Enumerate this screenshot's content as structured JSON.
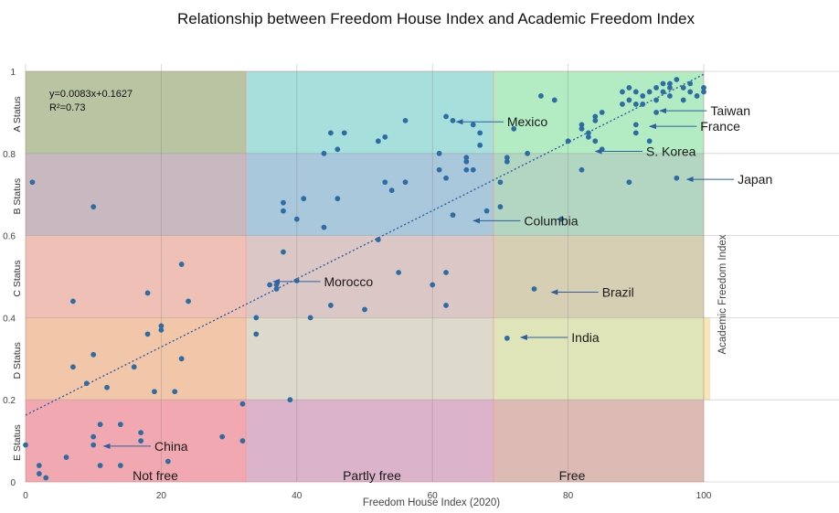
{
  "chart_data": {
    "type": "scatter",
    "title": "Relationship between Freedom House Index and Academic Freedom Index",
    "xlabel": "Freedom House Index (2020)",
    "ylabel": "Academic Freedom Index",
    "xlim": [
      0,
      100
    ],
    "ylim": [
      0,
      1
    ],
    "xticks": [
      "0",
      "20",
      "40",
      "60",
      "80",
      "100"
    ],
    "yticks": [
      "0",
      "0.2",
      "0.4",
      "0.6",
      "0.8",
      "1"
    ],
    "grid": true,
    "trendline": {
      "equation": "y=0.0083x+0.1627",
      "r2": "R²=0.73",
      "slope": 0.0083,
      "intercept": 0.1627,
      "color": "#2e5f9e"
    },
    "point_color": "#2e6da4",
    "status_bands": [
      {
        "label": "A Status",
        "y0": 0.8,
        "y1": 1.0
      },
      {
        "label": "B Status",
        "y0": 0.6,
        "y1": 0.8
      },
      {
        "label": "C Status",
        "y0": 0.4,
        "y1": 0.6
      },
      {
        "label": "D Status",
        "y0": 0.2,
        "y1": 0.4
      },
      {
        "label": "E Status",
        "y0": 0.0,
        "y1": 0.2
      }
    ],
    "freedom_zones": [
      {
        "label": "Not free",
        "x0": 0,
        "x1": 32.5
      },
      {
        "label": "Partly  free",
        "x0": 32.5,
        "x1": 69
      },
      {
        "label": "Free",
        "x0": 69,
        "x1": 100
      }
    ],
    "regions": [
      {
        "x0": 0,
        "x1": 32.5,
        "y0": 0.8,
        "y1": 1.0,
        "color": "#b9c4a3"
      },
      {
        "x0": 32.5,
        "x1": 69,
        "y0": 0.8,
        "y1": 1.0,
        "color": "#a6dfdc"
      },
      {
        "x0": 69,
        "x1": 100,
        "y0": 0.8,
        "y1": 1.0,
        "color": "#b3ecc3"
      },
      {
        "x0": 0,
        "x1": 32.5,
        "y0": 0.6,
        "y1": 0.8,
        "color": "#c8b8bf"
      },
      {
        "x0": 32.5,
        "x1": 69,
        "y0": 0.6,
        "y1": 0.8,
        "color": "#a9c8dc"
      },
      {
        "x0": 69,
        "x1": 100,
        "y0": 0.6,
        "y1": 0.8,
        "color": "#b3d6c2"
      },
      {
        "x0": 0,
        "x1": 32.5,
        "y0": 0.4,
        "y1": 0.6,
        "color": "#efc1b6"
      },
      {
        "x0": 32.5,
        "x1": 69,
        "y0": 0.4,
        "y1": 0.6,
        "color": "#dcc7c7"
      },
      {
        "x0": 69,
        "x1": 100,
        "y0": 0.4,
        "y1": 0.6,
        "color": "#d7cfb3"
      },
      {
        "x0": 0,
        "x1": 32.5,
        "y0": 0.2,
        "y1": 0.4,
        "color": "#f2c6a8"
      },
      {
        "x0": 32.5,
        "x1": 69,
        "y0": 0.2,
        "y1": 0.4,
        "color": "#dedacb"
      },
      {
        "x0": 69,
        "x1": 100,
        "y0": 0.2,
        "y1": 0.4,
        "color": "#dfe5b9"
      },
      {
        "x0": 0,
        "x1": 32.5,
        "y0": 0.0,
        "y1": 0.2,
        "color": "#f2a8b0"
      },
      {
        "x0": 32.5,
        "x1": 69,
        "y0": 0.0,
        "y1": 0.2,
        "color": "#dbb3ca"
      },
      {
        "x0": 69,
        "x1": 100,
        "y0": 0.0,
        "y1": 0.2,
        "color": "#dcbbb4"
      }
    ],
    "d_band_extra": {
      "x0": 100,
      "x1": 101,
      "y0": 0.2,
      "y1": 0.4,
      "color": "#f8e6b8"
    },
    "points": [
      [
        0,
        0.09
      ],
      [
        1,
        0.73
      ],
      [
        2,
        0.02
      ],
      [
        2,
        0.04
      ],
      [
        3,
        0.01
      ],
      [
        6,
        0.06
      ],
      [
        7,
        0.44
      ],
      [
        7,
        0.28
      ],
      [
        9,
        0.24
      ],
      [
        10,
        0.67
      ],
      [
        10,
        0.31
      ],
      [
        10,
        0.11
      ],
      [
        10,
        0.09
      ],
      [
        11,
        0.14
      ],
      [
        11,
        0.04
      ],
      [
        12,
        0.23
      ],
      [
        14,
        0.14
      ],
      [
        14,
        0.04
      ],
      [
        16,
        0.28
      ],
      [
        17,
        0.12
      ],
      [
        17,
        0.1
      ],
      [
        18,
        0.36
      ],
      [
        18,
        0.46
      ],
      [
        19,
        0.22
      ],
      [
        20,
        0.38
      ],
      [
        20,
        0.37
      ],
      [
        21,
        0.05
      ],
      [
        22,
        0.22
      ],
      [
        23,
        0.53
      ],
      [
        23,
        0.3
      ],
      [
        24,
        0.44
      ],
      [
        29,
        0.11
      ],
      [
        32,
        0.19
      ],
      [
        32,
        0.1
      ],
      [
        34,
        0.4
      ],
      [
        34,
        0.36
      ],
      [
        36,
        0.48
      ],
      [
        37,
        0.47
      ],
      [
        37,
        0.48
      ],
      [
        38,
        0.56
      ],
      [
        38,
        0.66
      ],
      [
        38,
        0.68
      ],
      [
        39,
        0.2
      ],
      [
        40,
        0.49
      ],
      [
        40,
        0.64
      ],
      [
        41,
        0.69
      ],
      [
        42,
        0.4
      ],
      [
        44,
        0.8
      ],
      [
        44,
        0.62
      ],
      [
        45,
        0.85
      ],
      [
        45,
        0.43
      ],
      [
        46,
        0.81
      ],
      [
        46,
        0.69
      ],
      [
        47,
        0.85
      ],
      [
        50,
        0.42
      ],
      [
        52,
        0.59
      ],
      [
        52,
        0.83
      ],
      [
        53,
        0.84
      ],
      [
        53,
        0.73
      ],
      [
        54,
        0.71
      ],
      [
        55,
        0.51
      ],
      [
        56,
        0.73
      ],
      [
        56,
        0.88
      ],
      [
        60,
        0.48
      ],
      [
        61,
        0.8
      ],
      [
        61,
        0.76
      ],
      [
        62,
        0.51
      ],
      [
        62,
        0.43
      ],
      [
        62,
        0.74
      ],
      [
        62,
        0.89
      ],
      [
        63,
        0.88
      ],
      [
        63,
        0.65
      ],
      [
        65,
        0.79
      ],
      [
        65,
        0.78
      ],
      [
        65,
        0.76
      ],
      [
        66,
        0.76
      ],
      [
        66,
        0.87
      ],
      [
        67,
        0.85
      ],
      [
        67,
        0.82
      ],
      [
        68,
        0.66
      ],
      [
        70,
        0.73
      ],
      [
        70,
        0.67
      ],
      [
        71,
        0.79
      ],
      [
        71,
        0.78
      ],
      [
        71,
        0.35
      ],
      [
        72,
        0.86
      ],
      [
        74,
        0.8
      ],
      [
        75,
        0.47
      ],
      [
        76,
        0.94
      ],
      [
        78,
        0.93
      ],
      [
        79,
        0.64
      ],
      [
        80,
        0.83
      ],
      [
        82,
        0.87
      ],
      [
        82,
        0.86
      ],
      [
        82,
        0.76
      ],
      [
        83,
        0.85
      ],
      [
        83,
        0.84
      ],
      [
        84,
        0.83
      ],
      [
        84,
        0.88
      ],
      [
        84,
        0.89
      ],
      [
        85,
        0.9
      ],
      [
        85,
        0.81
      ],
      [
        88,
        0.92
      ],
      [
        88,
        0.95
      ],
      [
        89,
        0.93
      ],
      [
        89,
        0.96
      ],
      [
        89,
        0.73
      ],
      [
        90,
        0.95
      ],
      [
        90,
        0.92
      ],
      [
        90,
        0.87
      ],
      [
        90,
        0.85
      ],
      [
        91,
        0.94
      ],
      [
        91,
        0.92
      ],
      [
        92,
        0.83
      ],
      [
        92,
        0.95
      ],
      [
        93,
        0.96
      ],
      [
        93,
        0.93
      ],
      [
        93,
        0.9
      ],
      [
        94,
        0.95
      ],
      [
        94,
        0.97
      ],
      [
        95,
        0.97
      ],
      [
        95,
        0.96
      ],
      [
        95,
        0.94
      ],
      [
        96,
        0.98
      ],
      [
        96,
        0.74
      ],
      [
        97,
        0.96
      ],
      [
        97,
        0.93
      ],
      [
        98,
        0.95
      ],
      [
        98,
        0.97
      ],
      [
        99,
        0.94
      ],
      [
        100,
        0.96
      ],
      [
        100,
        0.95
      ]
    ],
    "annotations": [
      {
        "text": "Mexico",
        "x": 63,
        "y": 0.877,
        "tx": 71
      },
      {
        "text": "Taiwan",
        "x": 93,
        "y": 0.904,
        "tx": 101
      },
      {
        "text": "France",
        "x": 91.5,
        "y": 0.866,
        "tx": 99.5
      },
      {
        "text": "S. Korea",
        "x": 83.5,
        "y": 0.805,
        "tx": 91.5
      },
      {
        "text": "Japan",
        "x": 97,
        "y": 0.737,
        "tx": 105
      },
      {
        "text": "Columbia",
        "x": 65.5,
        "y": 0.636,
        "tx": 73.5
      },
      {
        "text": "Morocco",
        "x": 36,
        "y": 0.488,
        "tx": 44
      },
      {
        "text": "Brazil",
        "x": 77,
        "y": 0.462,
        "tx": 85
      },
      {
        "text": "India",
        "x": 72.5,
        "y": 0.352,
        "tx": 80.5
      },
      {
        "text": "China",
        "x": 11,
        "y": 0.087,
        "tx": 19
      }
    ]
  }
}
